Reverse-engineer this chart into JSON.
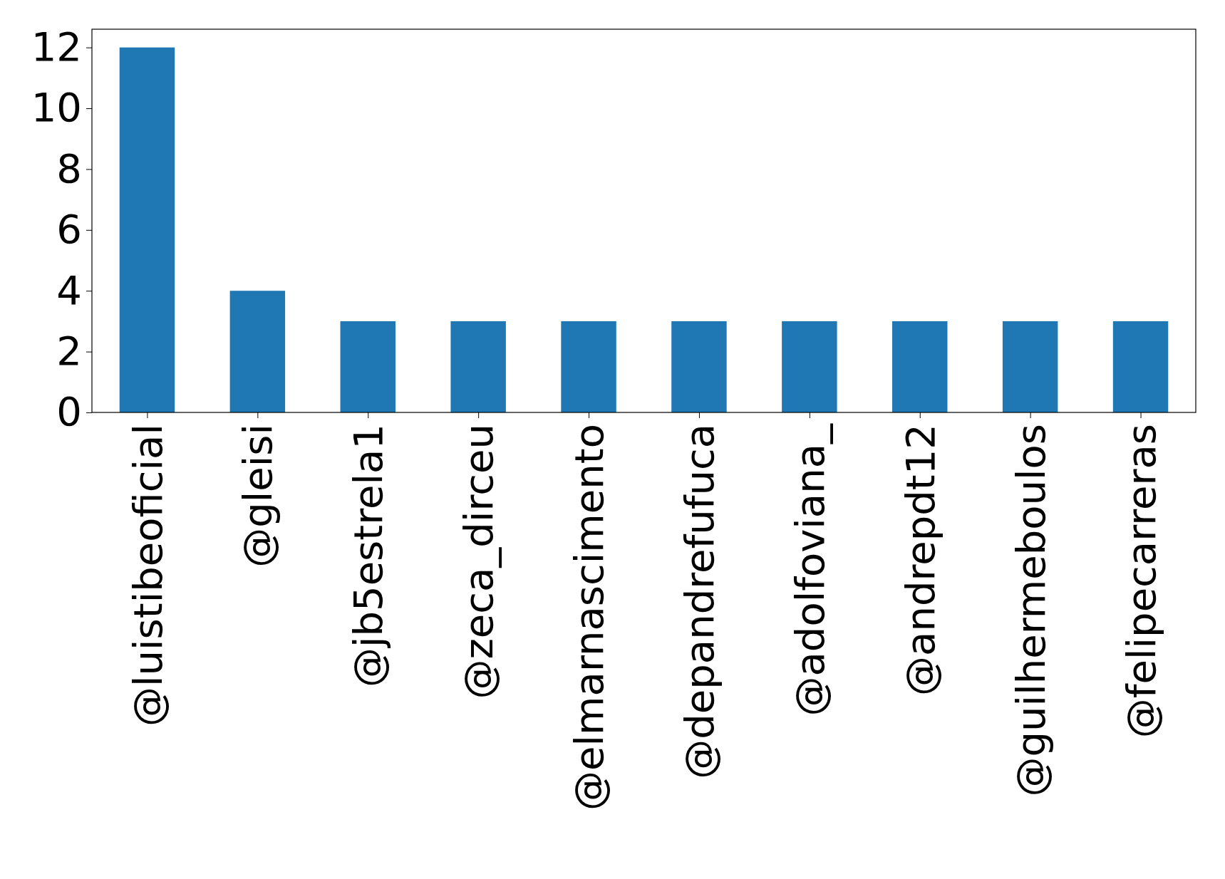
{
  "chart_data": {
    "type": "bar",
    "categories": [
      "@luistibeoficial",
      "@gleisi",
      "@jb5estrela1",
      "@zeca_dirceu",
      "@elmarnascimento",
      "@depandrefufuca",
      "@adolfoviana_",
      "@andrepdt12",
      "@guilhermeboulos",
      "@felipecarreras"
    ],
    "values": [
      12,
      4,
      3,
      3,
      3,
      3,
      3,
      3,
      3,
      3
    ],
    "color": "#1f77b4",
    "ylim": [
      0,
      12.6
    ],
    "yticks": [
      0,
      2,
      4,
      6,
      8,
      10,
      12
    ]
  }
}
